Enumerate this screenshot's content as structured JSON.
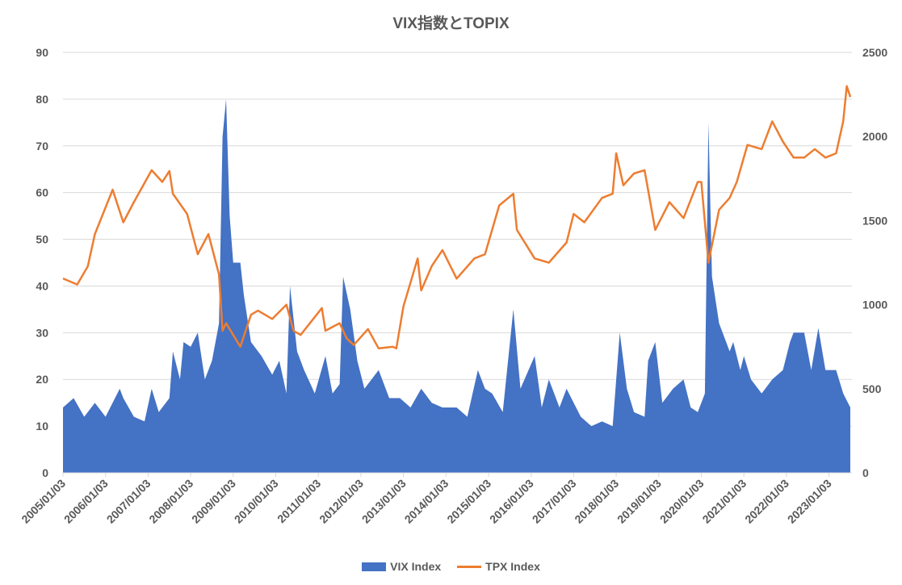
{
  "chart_data": {
    "type": "area+line",
    "title": "VIX指数とTOPIX",
    "x_tick_labels": [
      "2005/01/03",
      "2006/01/03",
      "2007/01/03",
      "2008/01/03",
      "2009/01/03",
      "2010/01/03",
      "2011/01/03",
      "2012/01/03",
      "2013/01/03",
      "2014/01/03",
      "2015/01/03",
      "2016/01/03",
      "2017/01/03",
      "2018/01/03",
      "2019/01/03",
      "2020/01/03",
      "2021/01/03",
      "2022/01/03",
      "2023/01/03"
    ],
    "x_range": [
      "2005-01",
      "2023-07"
    ],
    "y_left": {
      "min": 0,
      "max": 90,
      "ticks": [
        0,
        10,
        20,
        30,
        40,
        50,
        60,
        70,
        80,
        90
      ]
    },
    "y_right": {
      "min": 0,
      "max": 2500,
      "ticks": [
        0,
        500,
        1000,
        1500,
        2000,
        2500
      ]
    },
    "grid": true,
    "legend_position": "bottom",
    "series": [
      {
        "name": "VIX Index",
        "type": "area",
        "axis": "left",
        "color": "#4472C4",
        "points": [
          [
            "2005-01",
            14
          ],
          [
            "2005-04",
            16
          ],
          [
            "2005-07",
            12
          ],
          [
            "2005-10",
            15
          ],
          [
            "2006-01",
            12
          ],
          [
            "2006-05",
            18
          ],
          [
            "2006-06",
            16
          ],
          [
            "2006-09",
            12
          ],
          [
            "2006-12",
            11
          ],
          [
            "2007-02",
            18
          ],
          [
            "2007-04",
            13
          ],
          [
            "2007-07",
            16
          ],
          [
            "2007-08",
            26
          ],
          [
            "2007-10",
            20
          ],
          [
            "2007-11",
            28
          ],
          [
            "2008-01",
            27
          ],
          [
            "2008-03",
            30
          ],
          [
            "2008-05",
            20
          ],
          [
            "2008-07",
            24
          ],
          [
            "2008-09",
            32
          ],
          [
            "2008-10",
            72
          ],
          [
            "2008-11",
            80
          ],
          [
            "2008-12",
            55
          ],
          [
            "2009-01",
            45
          ],
          [
            "2009-03",
            45
          ],
          [
            "2009-04",
            38
          ],
          [
            "2009-06",
            28
          ],
          [
            "2009-09",
            25
          ],
          [
            "2009-12",
            21
          ],
          [
            "2010-02",
            24
          ],
          [
            "2010-04",
            17
          ],
          [
            "2010-05",
            40
          ],
          [
            "2010-07",
            26
          ],
          [
            "2010-09",
            22
          ],
          [
            "2010-12",
            17
          ],
          [
            "2011-03",
            25
          ],
          [
            "2011-05",
            17
          ],
          [
            "2011-07",
            19
          ],
          [
            "2011-08",
            42
          ],
          [
            "2011-10",
            35
          ],
          [
            "2011-12",
            24
          ],
          [
            "2012-02",
            18
          ],
          [
            "2012-06",
            22
          ],
          [
            "2012-09",
            16
          ],
          [
            "2012-12",
            16
          ],
          [
            "2013-03",
            14
          ],
          [
            "2013-06",
            18
          ],
          [
            "2013-09",
            15
          ],
          [
            "2013-12",
            14
          ],
          [
            "2014-04",
            14
          ],
          [
            "2014-07",
            12
          ],
          [
            "2014-10",
            22
          ],
          [
            "2014-12",
            18
          ],
          [
            "2015-02",
            17
          ],
          [
            "2015-05",
            13
          ],
          [
            "2015-08",
            35
          ],
          [
            "2015-10",
            18
          ],
          [
            "2016-02",
            25
          ],
          [
            "2016-04",
            14
          ],
          [
            "2016-06",
            20
          ],
          [
            "2016-09",
            14
          ],
          [
            "2016-11",
            18
          ],
          [
            "2017-03",
            12
          ],
          [
            "2017-06",
            10
          ],
          [
            "2017-09",
            11
          ],
          [
            "2017-12",
            10
          ],
          [
            "2018-02",
            30
          ],
          [
            "2018-04",
            18
          ],
          [
            "2018-06",
            13
          ],
          [
            "2018-09",
            12
          ],
          [
            "2018-10",
            24
          ],
          [
            "2018-12",
            28
          ],
          [
            "2019-02",
            15
          ],
          [
            "2019-05",
            18
          ],
          [
            "2019-08",
            20
          ],
          [
            "2019-10",
            14
          ],
          [
            "2019-12",
            13
          ],
          [
            "2020-02",
            17
          ],
          [
            "2020-03",
            75
          ],
          [
            "2020-04",
            42
          ],
          [
            "2020-06",
            32
          ],
          [
            "2020-09",
            26
          ],
          [
            "2020-10",
            28
          ],
          [
            "2020-12",
            22
          ],
          [
            "2021-01",
            25
          ],
          [
            "2021-03",
            20
          ],
          [
            "2021-06",
            17
          ],
          [
            "2021-09",
            20
          ],
          [
            "2021-12",
            22
          ],
          [
            "2022-02",
            28
          ],
          [
            "2022-03",
            30
          ],
          [
            "2022-05",
            30
          ],
          [
            "2022-06",
            30
          ],
          [
            "2022-08",
            22
          ],
          [
            "2022-10",
            31
          ],
          [
            "2022-12",
            22
          ],
          [
            "2023-03",
            22
          ],
          [
            "2023-05",
            17
          ],
          [
            "2023-07",
            14
          ]
        ]
      },
      {
        "name": "TPX Index",
        "type": "line",
        "axis": "right",
        "color": "#ED7D31",
        "points": [
          [
            "2005-01",
            1156
          ],
          [
            "2005-05",
            1120
          ],
          [
            "2005-08",
            1228
          ],
          [
            "2005-10",
            1420
          ],
          [
            "2006-03",
            1684
          ],
          [
            "2006-06",
            1490
          ],
          [
            "2006-09",
            1610
          ],
          [
            "2007-02",
            1800
          ],
          [
            "2007-05",
            1730
          ],
          [
            "2007-07",
            1795
          ],
          [
            "2007-08",
            1660
          ],
          [
            "2007-12",
            1540
          ],
          [
            "2008-03",
            1300
          ],
          [
            "2008-06",
            1420
          ],
          [
            "2008-09",
            1180
          ],
          [
            "2008-10",
            845
          ],
          [
            "2008-11",
            890
          ],
          [
            "2009-03",
            750
          ],
          [
            "2009-06",
            940
          ],
          [
            "2009-08",
            965
          ],
          [
            "2009-12",
            915
          ],
          [
            "2010-04",
            1000
          ],
          [
            "2010-06",
            845
          ],
          [
            "2010-08",
            820
          ],
          [
            "2011-02",
            980
          ],
          [
            "2011-03",
            845
          ],
          [
            "2011-07",
            890
          ],
          [
            "2011-09",
            800
          ],
          [
            "2011-11",
            760
          ],
          [
            "2012-03",
            855
          ],
          [
            "2012-06",
            740
          ],
          [
            "2012-10",
            750
          ],
          [
            "2012-11",
            740
          ],
          [
            "2013-01",
            990
          ],
          [
            "2013-05",
            1275
          ],
          [
            "2013-06",
            1085
          ],
          [
            "2013-09",
            1230
          ],
          [
            "2013-12",
            1325
          ],
          [
            "2014-04",
            1155
          ],
          [
            "2014-09",
            1275
          ],
          [
            "2014-12",
            1300
          ],
          [
            "2015-04",
            1590
          ],
          [
            "2015-08",
            1660
          ],
          [
            "2015-09",
            1445
          ],
          [
            "2016-02",
            1275
          ],
          [
            "2016-06",
            1250
          ],
          [
            "2016-11",
            1370
          ],
          [
            "2017-01",
            1540
          ],
          [
            "2017-04",
            1490
          ],
          [
            "2017-09",
            1635
          ],
          [
            "2017-12",
            1660
          ],
          [
            "2018-01",
            1900
          ],
          [
            "2018-03",
            1710
          ],
          [
            "2018-06",
            1780
          ],
          [
            "2018-09",
            1800
          ],
          [
            "2018-12",
            1445
          ],
          [
            "2019-04",
            1610
          ],
          [
            "2019-08",
            1515
          ],
          [
            "2019-12",
            1730
          ],
          [
            "2020-01",
            1730
          ],
          [
            "2020-03",
            1250
          ],
          [
            "2020-06",
            1565
          ],
          [
            "2020-09",
            1635
          ],
          [
            "2020-11",
            1730
          ],
          [
            "2021-02",
            1950
          ],
          [
            "2021-06",
            1925
          ],
          [
            "2021-09",
            2090
          ],
          [
            "2021-12",
            1970
          ],
          [
            "2022-03",
            1875
          ],
          [
            "2022-06",
            1875
          ],
          [
            "2022-09",
            1925
          ],
          [
            "2022-12",
            1875
          ],
          [
            "2023-03",
            1900
          ],
          [
            "2023-05",
            2090
          ],
          [
            "2023-06",
            2300
          ],
          [
            "2023-07",
            2235
          ]
        ]
      }
    ]
  }
}
